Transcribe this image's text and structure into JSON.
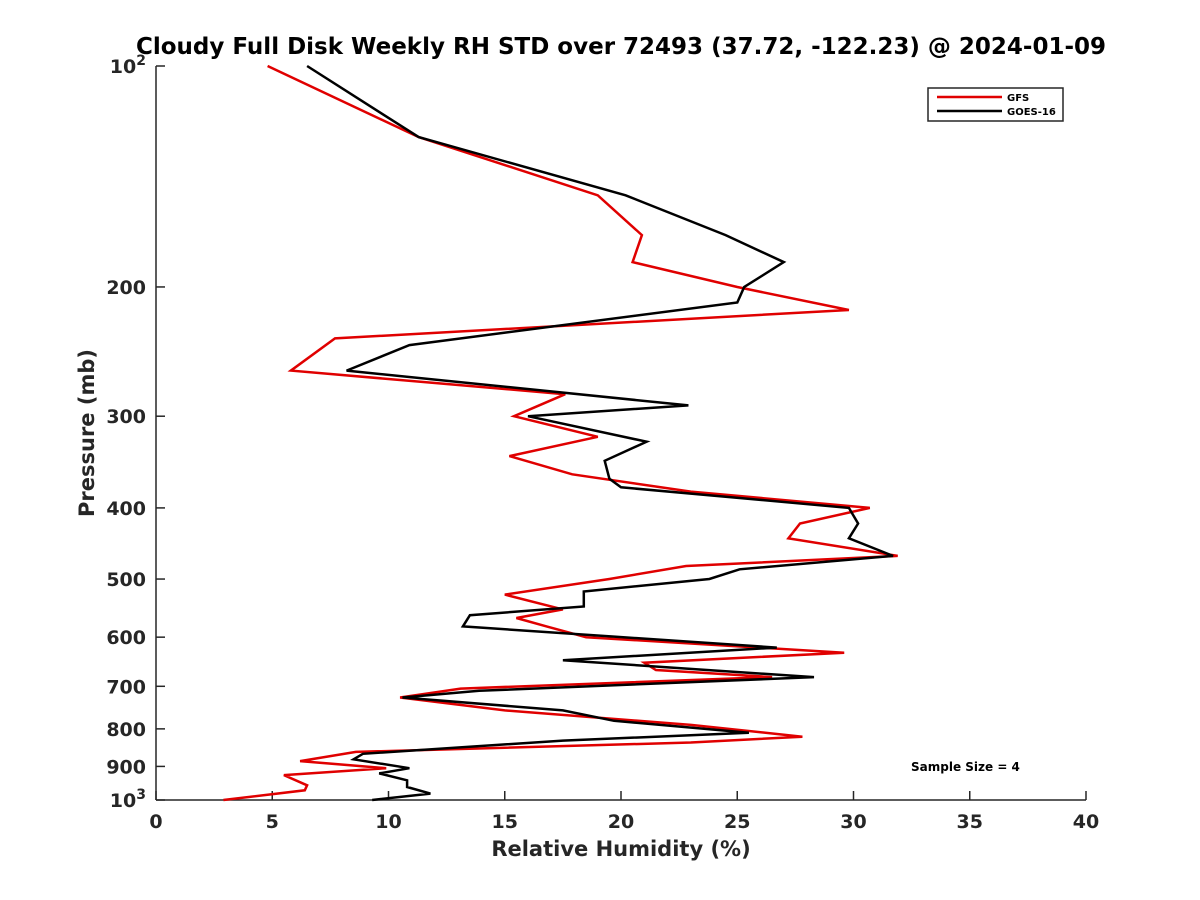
{
  "chart_data": {
    "type": "line",
    "title": "Cloudy Full Disk Weekly RH STD over 72493 (37.72, -122.23) @ 2024-01-09",
    "xlabel": "Relative Humidity (%)",
    "ylabel": "Pressure (mb)",
    "xlim": [
      0,
      40
    ],
    "ylim": [
      100,
      1000
    ],
    "y_scale": "log",
    "y_reversed": true,
    "x_ticks": [
      "0",
      "5",
      "10",
      "15",
      "20",
      "25",
      "30",
      "35",
      "40"
    ],
    "y_ticks": [
      {
        "value": 100,
        "base": "10",
        "exp": "2"
      },
      {
        "value": 200,
        "label": "200"
      },
      {
        "value": 300,
        "label": "300"
      },
      {
        "value": 400,
        "label": "400"
      },
      {
        "value": 500,
        "label": "500"
      },
      {
        "value": 600,
        "label": "600"
      },
      {
        "value": 700,
        "label": "700"
      },
      {
        "value": 800,
        "label": "800"
      },
      {
        "value": 900,
        "label": "900"
      },
      {
        "value": 1000,
        "base": "10",
        "exp": "3"
      }
    ],
    "legend_position": "top-right",
    "annotation": "Sample Size = 4",
    "series": [
      {
        "name": "GFS",
        "color": "#e00000",
        "points": [
          [
            4.8,
            100
          ],
          [
            11.3,
            125
          ],
          [
            19.0,
            150
          ],
          [
            20.9,
            170
          ],
          [
            20.5,
            185
          ],
          [
            25.0,
            200
          ],
          [
            29.8,
            215
          ],
          [
            7.7,
            235
          ],
          [
            5.8,
            260
          ],
          [
            17.6,
            280
          ],
          [
            15.4,
            300
          ],
          [
            19.0,
            320
          ],
          [
            15.2,
            340
          ],
          [
            17.9,
            360
          ],
          [
            23.0,
            380
          ],
          [
            30.7,
            400
          ],
          [
            27.7,
            420
          ],
          [
            27.2,
            440
          ],
          [
            31.9,
            465
          ],
          [
            22.8,
            480
          ],
          [
            19.5,
            500
          ],
          [
            15.0,
            525
          ],
          [
            17.5,
            550
          ],
          [
            15.5,
            565
          ],
          [
            16.8,
            580
          ],
          [
            18.5,
            600
          ],
          [
            29.6,
            630
          ],
          [
            21.0,
            650
          ],
          [
            21.5,
            665
          ],
          [
            26.5,
            680
          ],
          [
            13.1,
            705
          ],
          [
            10.5,
            725
          ],
          [
            15.0,
            755
          ],
          [
            23.0,
            790
          ],
          [
            27.8,
            820
          ],
          [
            23.0,
            835
          ],
          [
            8.6,
            860
          ],
          [
            6.2,
            885
          ],
          [
            9.9,
            905
          ],
          [
            5.5,
            925
          ],
          [
            6.5,
            955
          ],
          [
            6.4,
            970
          ],
          [
            2.9,
            1000
          ]
        ]
      },
      {
        "name": "GOES-16",
        "color": "#000000",
        "points": [
          [
            6.5,
            100
          ],
          [
            11.3,
            125
          ],
          [
            20.2,
            150
          ],
          [
            24.5,
            170
          ],
          [
            27.0,
            185
          ],
          [
            25.3,
            200
          ],
          [
            25.0,
            210
          ],
          [
            10.9,
            240
          ],
          [
            8.2,
            260
          ],
          [
            22.9,
            290
          ],
          [
            16.0,
            300
          ],
          [
            21.1,
            325
          ],
          [
            19.3,
            345
          ],
          [
            19.5,
            365
          ],
          [
            20.0,
            375
          ],
          [
            29.8,
            400
          ],
          [
            30.2,
            420
          ],
          [
            29.8,
            440
          ],
          [
            31.7,
            465
          ],
          [
            25.1,
            485
          ],
          [
            23.8,
            500
          ],
          [
            18.4,
            520
          ],
          [
            18.4,
            545
          ],
          [
            13.5,
            560
          ],
          [
            13.2,
            580
          ],
          [
            26.7,
            620
          ],
          [
            17.5,
            645
          ],
          [
            23.7,
            665
          ],
          [
            28.3,
            680
          ],
          [
            13.9,
            710
          ],
          [
            10.6,
            725
          ],
          [
            17.5,
            755
          ],
          [
            19.7,
            780
          ],
          [
            25.5,
            810
          ],
          [
            17.5,
            830
          ],
          [
            8.9,
            865
          ],
          [
            8.5,
            880
          ],
          [
            10.9,
            905
          ],
          [
            9.6,
            920
          ],
          [
            10.8,
            940
          ],
          [
            10.8,
            960
          ],
          [
            11.8,
            980
          ],
          [
            9.3,
            1000
          ]
        ]
      }
    ]
  }
}
